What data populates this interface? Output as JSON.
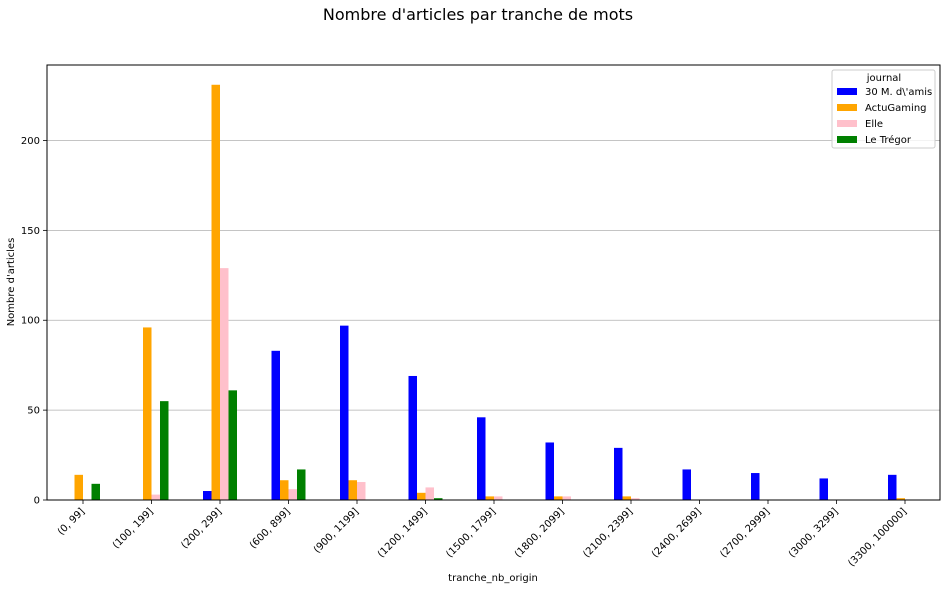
{
  "chart_data": {
    "type": "bar",
    "title": "Nombre d'articles par tranche de mots",
    "xlabel": "tranche_nb_origin",
    "ylabel": "Nombre d'articles",
    "ylim": [
      0,
      242
    ],
    "yticks": [
      0,
      50,
      100,
      150,
      200
    ],
    "grid": "horizontal",
    "legend": {
      "title": "journal",
      "placement": "top-right"
    },
    "categories": [
      "(0, 99]",
      "(100, 199]",
      "(200, 299]",
      "(600, 899]",
      "(900, 1199]",
      "(1200, 1499]",
      "(1500, 1799]",
      "(1800, 2099]",
      "(2100, 2399]",
      "(2400, 2699]",
      "(2700, 2999]",
      "(3000, 3299]",
      "(3300, 100000]"
    ],
    "series": [
      {
        "name": "30 M. d\\'amis",
        "color": "#0000ff",
        "values": [
          0,
          0,
          5,
          83,
          97,
          69,
          46,
          32,
          29,
          17,
          15,
          12,
          14
        ]
      },
      {
        "name": "ActuGaming",
        "color": "#ffa500",
        "values": [
          14,
          96,
          231,
          11,
          11,
          4,
          2,
          2,
          2,
          0,
          0,
          0,
          1
        ]
      },
      {
        "name": "Elle",
        "color": "#ffc0cb",
        "values": [
          0,
          3,
          129,
          6,
          10,
          7,
          2,
          2,
          1,
          0,
          0,
          0,
          0
        ]
      },
      {
        "name": "Le Trégor",
        "color": "#008000",
        "values": [
          9,
          55,
          61,
          17,
          0,
          1,
          0,
          0,
          0,
          0,
          0,
          0,
          0
        ]
      }
    ]
  }
}
